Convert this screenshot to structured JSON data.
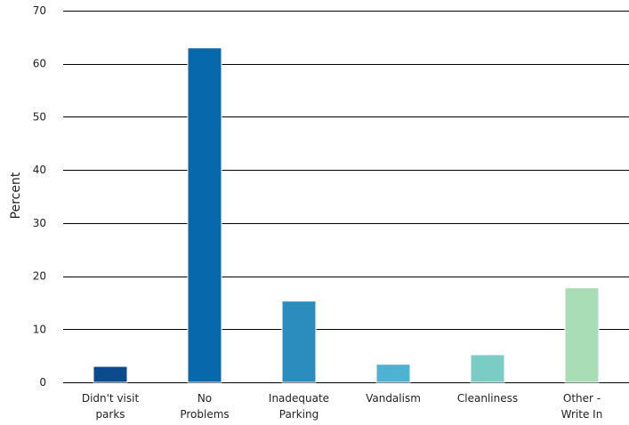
{
  "chart_data": {
    "type": "bar",
    "title": "",
    "xlabel": "",
    "ylabel": "Percent",
    "ylim": [
      0,
      70
    ],
    "yticks": [
      0,
      10,
      20,
      30,
      40,
      50,
      60,
      70
    ],
    "grid": true,
    "legend": "none",
    "categories": [
      [
        "Didn't visit",
        "parks"
      ],
      [
        "No",
        "Problems"
      ],
      [
        "Inadequate",
        "Parking"
      ],
      [
        "Vandalism"
      ],
      [
        "Cleanliness"
      ],
      [
        "Other -",
        "Write In"
      ]
    ],
    "values": [
      3,
      63,
      15.3,
      3.4,
      5.2,
      17.8
    ],
    "colors": [
      "#0b4a8b",
      "#0868ac",
      "#2b8cbe",
      "#4eb3d3",
      "#7bccc4",
      "#a8ddb5"
    ]
  }
}
